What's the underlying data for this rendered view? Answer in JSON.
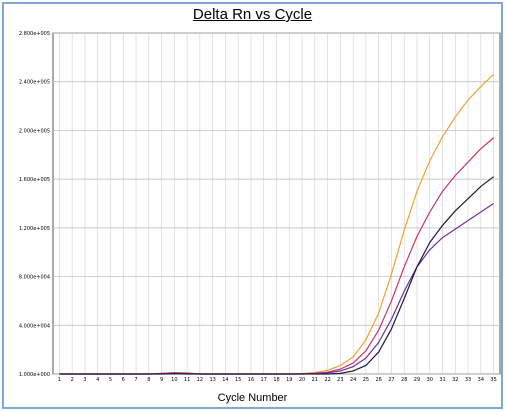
{
  "chart_data": {
    "type": "line",
    "title": "Delta Rn vs Cycle",
    "xlabel": "Cycle Number",
    "ylabel": "",
    "x": [
      1,
      2,
      3,
      4,
      5,
      6,
      7,
      8,
      9,
      10,
      11,
      12,
      13,
      14,
      15,
      16,
      17,
      18,
      19,
      20,
      21,
      22,
      23,
      24,
      25,
      26,
      27,
      28,
      29,
      30,
      31,
      32,
      33,
      34,
      35
    ],
    "xlim": [
      0.5,
      35.5
    ],
    "ylim": [
      0,
      280000
    ],
    "y_ticks": [
      0,
      40000,
      80000,
      120000,
      160000,
      200000,
      240000,
      280000
    ],
    "y_tick_labels": [
      "1.000e+000",
      "4.000e+004",
      "8.000e+004",
      "1.200e+005",
      "1.600e+005",
      "2.000e+005",
      "2.400e+005",
      "2.800e+005"
    ],
    "x_tick_labels": [
      "1",
      "2",
      "3",
      "4",
      "5",
      "6",
      "7",
      "8",
      "9",
      "10",
      "11",
      "12",
      "13",
      "14",
      "15",
      "16",
      "17",
      "18",
      "19",
      "20",
      "21",
      "22",
      "23",
      "24",
      "25",
      "26",
      "27",
      "28",
      "29",
      "30",
      "31",
      "32",
      "33",
      "34",
      "35"
    ],
    "grid": true,
    "legend": "none",
    "series": [
      {
        "color": "#f0a030",
        "values": [
          0,
          0,
          0,
          0,
          0,
          0,
          0,
          0,
          500,
          1200,
          800,
          0,
          0,
          0,
          0,
          0,
          0,
          0,
          0,
          300,
          1200,
          3000,
          7000,
          14000,
          28000,
          50000,
          82000,
          118000,
          150000,
          175000,
          195000,
          211000,
          225000,
          236000,
          246000
        ]
      },
      {
        "color": "#cc3366",
        "values": [
          0,
          0,
          0,
          0,
          0,
          0,
          0,
          0,
          400,
          900,
          600,
          0,
          0,
          0,
          0,
          0,
          0,
          0,
          0,
          100,
          500,
          1500,
          4000,
          9000,
          19000,
          36000,
          60000,
          88000,
          113000,
          133000,
          150000,
          163000,
          174000,
          185000,
          194000
        ]
      },
      {
        "color": "#7030a0",
        "values": [
          0,
          0,
          0,
          0,
          0,
          0,
          0,
          0,
          200,
          500,
          300,
          0,
          0,
          0,
          0,
          0,
          0,
          0,
          0,
          0,
          300,
          900,
          2500,
          6000,
          13000,
          26000,
          45000,
          68000,
          88000,
          102000,
          112000,
          119000,
          126000,
          133000,
          140000
        ]
      },
      {
        "color": "#1a1a40",
        "values": [
          0,
          0,
          0,
          0,
          0,
          0,
          0,
          0,
          0,
          200,
          0,
          0,
          0,
          0,
          0,
          0,
          0,
          0,
          0,
          0,
          0,
          0,
          500,
          2500,
          7000,
          18000,
          37000,
          62000,
          88000,
          108000,
          122000,
          134000,
          144000,
          154000,
          162000
        ]
      }
    ]
  }
}
